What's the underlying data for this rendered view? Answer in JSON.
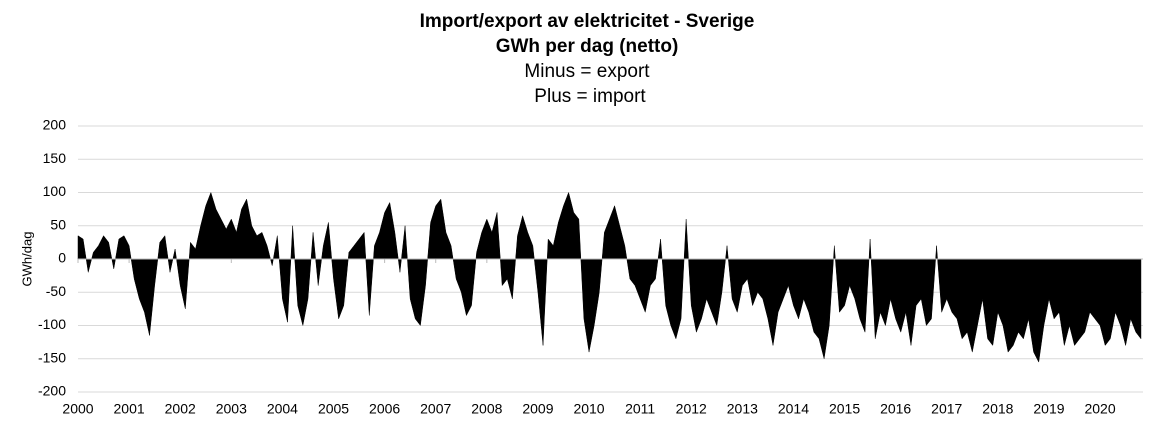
{
  "chart_data": {
    "type": "area",
    "title": "Import/export av elektricitet  - Sverige",
    "subtitle": "GWh per dag (netto)",
    "annotations": [
      "Minus = export",
      "Plus = import"
    ],
    "y_label": "GWh/dag",
    "color": "#000000",
    "grid": true,
    "xlim": [
      2000,
      2020.84
    ],
    "xticks": [
      2000,
      2001,
      2002,
      2003,
      2004,
      2005,
      2006,
      2007,
      2008,
      2009,
      2010,
      2011,
      2012,
      2013,
      2014,
      2015,
      2016,
      2017,
      2018,
      2019,
      2020
    ],
    "ylim": [
      -200,
      200
    ],
    "yticks": [
      -200,
      -150,
      -100,
      -50,
      0,
      50,
      100,
      150,
      200
    ],
    "x": [
      2000.0,
      2000.1,
      2000.2,
      2000.3,
      2000.4,
      2000.5,
      2000.6,
      2000.7,
      2000.8,
      2000.9,
      2001.0,
      2001.1,
      2001.2,
      2001.3,
      2001.4,
      2001.5,
      2001.6,
      2001.7,
      2001.8,
      2001.9,
      2002.0,
      2002.1,
      2002.2,
      2002.3,
      2002.4,
      2002.5,
      2002.6,
      2002.7,
      2002.8,
      2002.9,
      2003.0,
      2003.1,
      2003.2,
      2003.3,
      2003.4,
      2003.5,
      2003.6,
      2003.7,
      2003.8,
      2003.9,
      2004.0,
      2004.1,
      2004.2,
      2004.3,
      2004.4,
      2004.5,
      2004.6,
      2004.7,
      2004.8,
      2004.9,
      2005.0,
      2005.1,
      2005.2,
      2005.3,
      2005.4,
      2005.5,
      2005.6,
      2005.7,
      2005.8,
      2005.9,
      2006.0,
      2006.1,
      2006.2,
      2006.3,
      2006.4,
      2006.5,
      2006.6,
      2006.7,
      2006.8,
      2006.9,
      2007.0,
      2007.1,
      2007.2,
      2007.3,
      2007.4,
      2007.5,
      2007.6,
      2007.7,
      2007.8,
      2007.9,
      2008.0,
      2008.1,
      2008.2,
      2008.3,
      2008.4,
      2008.5,
      2008.6,
      2008.7,
      2008.8,
      2008.9,
      2009.0,
      2009.1,
      2009.2,
      2009.3,
      2009.4,
      2009.5,
      2009.6,
      2009.7,
      2009.8,
      2009.9,
      2010.0,
      2010.1,
      2010.2,
      2010.3,
      2010.4,
      2010.5,
      2010.6,
      2010.7,
      2010.8,
      2010.9,
      2011.0,
      2011.1,
      2011.2,
      2011.3,
      2011.4,
      2011.5,
      2011.6,
      2011.7,
      2011.8,
      2011.9,
      2012.0,
      2012.1,
      2012.2,
      2012.3,
      2012.4,
      2012.5,
      2012.6,
      2012.7,
      2012.8,
      2012.9,
      2013.0,
      2013.1,
      2013.2,
      2013.3,
      2013.4,
      2013.5,
      2013.6,
      2013.7,
      2013.8,
      2013.9,
      2014.0,
      2014.1,
      2014.2,
      2014.3,
      2014.4,
      2014.5,
      2014.6,
      2014.7,
      2014.8,
      2014.9,
      2015.0,
      2015.1,
      2015.2,
      2015.3,
      2015.4,
      2015.5,
      2015.6,
      2015.7,
      2015.8,
      2015.9,
      2016.0,
      2016.1,
      2016.2,
      2016.3,
      2016.4,
      2016.5,
      2016.6,
      2016.7,
      2016.8,
      2016.9,
      2017.0,
      2017.1,
      2017.2,
      2017.3,
      2017.4,
      2017.5,
      2017.6,
      2017.7,
      2017.8,
      2017.9,
      2018.0,
      2018.1,
      2018.2,
      2018.3,
      2018.4,
      2018.5,
      2018.6,
      2018.7,
      2018.8,
      2018.9,
      2019.0,
      2019.1,
      2019.2,
      2019.3,
      2019.4,
      2019.5,
      2019.6,
      2019.7,
      2019.8,
      2019.9,
      2020.0,
      2020.1,
      2020.2,
      2020.3,
      2020.4,
      2020.5,
      2020.6,
      2020.7,
      2020.8
    ],
    "values": [
      35,
      30,
      -20,
      10,
      20,
      35,
      25,
      -15,
      30,
      35,
      20,
      -30,
      -60,
      -80,
      -115,
      -40,
      25,
      35,
      -20,
      15,
      -40,
      -75,
      25,
      15,
      50,
      80,
      100,
      75,
      60,
      45,
      60,
      40,
      75,
      90,
      50,
      35,
      40,
      20,
      -10,
      35,
      -60,
      -95,
      50,
      -70,
      -100,
      -60,
      40,
      -40,
      20,
      55,
      -30,
      -90,
      -70,
      10,
      20,
      30,
      40,
      -85,
      20,
      40,
      70,
      85,
      40,
      -20,
      50,
      -60,
      -90,
      -100,
      -40,
      55,
      80,
      90,
      40,
      20,
      -30,
      -50,
      -85,
      -70,
      10,
      40,
      60,
      40,
      70,
      -40,
      -30,
      -60,
      35,
      65,
      40,
      20,
      -50,
      -130,
      30,
      20,
      55,
      80,
      100,
      70,
      60,
      -90,
      -140,
      -100,
      -50,
      40,
      60,
      80,
      50,
      20,
      -30,
      -40,
      -60,
      -80,
      -40,
      -30,
      30,
      -70,
      -100,
      -120,
      -90,
      60,
      -70,
      -110,
      -90,
      -60,
      -80,
      -100,
      -50,
      20,
      -60,
      -80,
      -40,
      -30,
      -70,
      -50,
      -60,
      -90,
      -130,
      -80,
      -60,
      -40,
      -70,
      -90,
      -60,
      -80,
      -110,
      -120,
      -150,
      -100,
      20,
      -80,
      -70,
      -40,
      -60,
      -90,
      -110,
      30,
      -120,
      -80,
      -100,
      -60,
      -90,
      -110,
      -80,
      -130,
      -70,
      -60,
      -100,
      -90,
      20,
      -80,
      -60,
      -80,
      -90,
      -120,
      -110,
      -140,
      -100,
      -60,
      -120,
      -130,
      -80,
      -100,
      -140,
      -130,
      -110,
      -120,
      -90,
      -140,
      -155,
      -100,
      -60,
      -90,
      -80,
      -130,
      -100,
      -130,
      -120,
      -110,
      -80,
      -90,
      -100,
      -130,
      -120,
      -80,
      -100,
      -130,
      -90,
      -110,
      -120
    ]
  }
}
